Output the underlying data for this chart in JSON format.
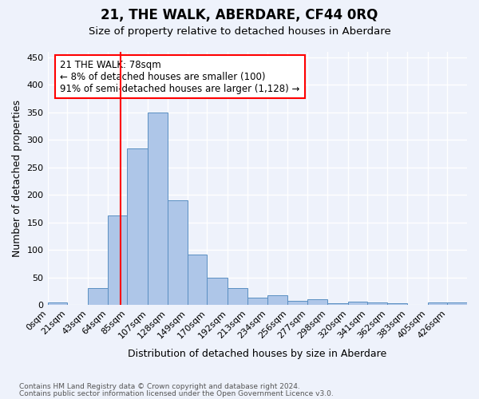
{
  "title": "21, THE WALK, ABERDARE, CF44 0RQ",
  "subtitle": "Size of property relative to detached houses in Aberdare",
  "xlabel": "Distribution of detached houses by size in Aberdare",
  "ylabel": "Number of detached properties",
  "footnote1": "Contains HM Land Registry data © Crown copyright and database right 2024.",
  "footnote2": "Contains public sector information licensed under the Open Government Licence v3.0.",
  "bar_labels": [
    "0sqm",
    "21sqm",
    "43sqm",
    "64sqm",
    "85sqm",
    "107sqm",
    "128sqm",
    "149sqm",
    "170sqm",
    "192sqm",
    "213sqm",
    "234sqm",
    "256sqm",
    "277sqm",
    "298sqm",
    "320sqm",
    "341sqm",
    "362sqm",
    "383sqm",
    "405sqm",
    "426sqm"
  ],
  "bar_values": [
    4,
    0,
    30,
    162,
    285,
    350,
    190,
    92,
    49,
    31,
    13,
    17,
    7,
    10,
    3,
    6,
    4,
    3,
    0,
    4,
    4
  ],
  "bin_edges": [
    0,
    21,
    43,
    64,
    85,
    107,
    128,
    149,
    170,
    192,
    213,
    234,
    256,
    277,
    298,
    320,
    341,
    362,
    383,
    405,
    426,
    447
  ],
  "bar_color": "#aec6e8",
  "bar_edge_color": "#5a8fc2",
  "red_line_x": 78,
  "annotation_line1": "21 THE WALK: 78sqm",
  "annotation_line2": "← 8% of detached houses are smaller (100)",
  "annotation_line3": "91% of semi-detached houses are larger (1,128) →",
  "ylim": [
    0,
    460
  ],
  "yticks": [
    0,
    50,
    100,
    150,
    200,
    250,
    300,
    350,
    400,
    450
  ],
  "bg_color": "#eef2fb",
  "grid_color": "#ffffff"
}
